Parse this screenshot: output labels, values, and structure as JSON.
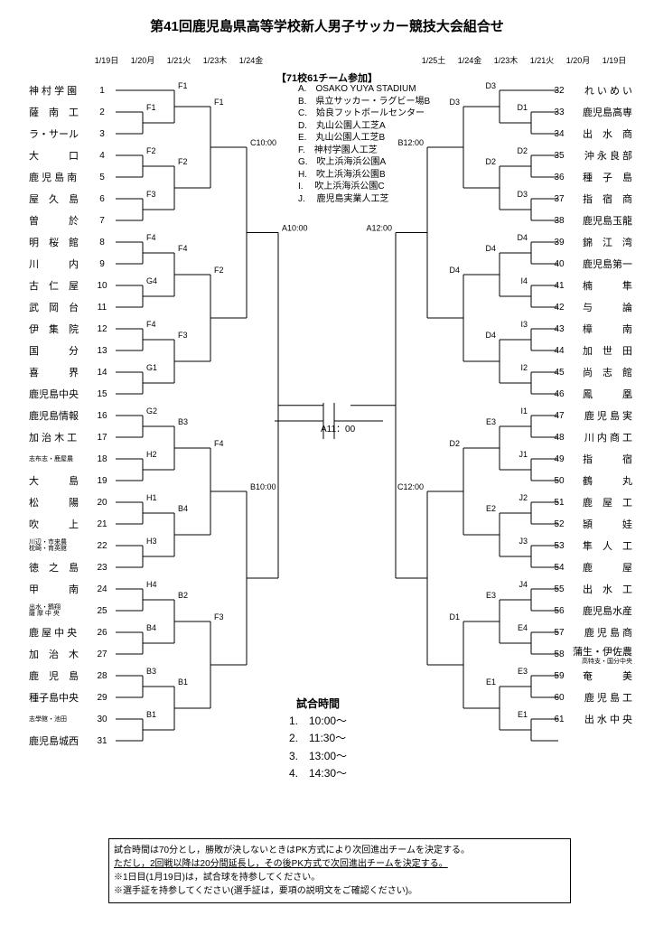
{
  "title": "第41回鹿児島県高等学校新人男子サッカー競技大会組合せ",
  "dates": [
    "1/19日",
    "1/20月",
    "1/21火",
    "1/23木",
    "1/24金",
    "1/25土",
    "1/24金",
    "1/23木",
    "1/21火",
    "1/20月",
    "1/19日"
  ],
  "header": "【71校61チーム参加】",
  "venues": [
    "A.　OSAKO YUYA STADIUM",
    "B.　県立サッカー・ラグビー場B",
    "C.　姶良フットボールセンター",
    "D.　丸山公園人工芝A",
    "E.　丸山公園人工芝B",
    "F.　神村学園人工芝",
    "G.　吹上浜海浜公園A",
    "H.　吹上浜海浜公園B",
    "I.　 吹上浜海浜公園C",
    "J.　 鹿児島実業人工芝"
  ],
  "teams_left": [
    {
      "name": "神 村 学 園",
      "no": "1"
    },
    {
      "name": "薩　南　工",
      "no": "2"
    },
    {
      "name": "ラ・サール",
      "no": "3"
    },
    {
      "name": "大　　　口",
      "no": "4"
    },
    {
      "name": "鹿 児 島 南",
      "no": "5"
    },
    {
      "name": "屋　久　島",
      "no": "6"
    },
    {
      "name": "曽　　　於",
      "no": "7"
    },
    {
      "name": "明　桜　館",
      "no": "8"
    },
    {
      "name": "川　　　内",
      "no": "9"
    },
    {
      "name": "古　仁　屋",
      "no": "10"
    },
    {
      "name": "武　岡　台",
      "no": "11"
    },
    {
      "name": "伊　集　院",
      "no": "12"
    },
    {
      "name": "国　　　分",
      "no": "13"
    },
    {
      "name": "喜　　　界",
      "no": "14"
    },
    {
      "name": "鹿児島中央",
      "no": "15"
    },
    {
      "name": "鹿児島情報",
      "no": "16"
    },
    {
      "name": "加 治 木 工",
      "no": "17"
    },
    {
      "name": "志布志・鹿屋農",
      "no": "18",
      "sub": 1
    },
    {
      "name": "大　　　島",
      "no": "19"
    },
    {
      "name": "松　　　陽",
      "no": "20"
    },
    {
      "name": "吹　　　上",
      "no": "21"
    },
    {
      "name": "川辺・市来農<br>枕崎・育英館",
      "no": "22",
      "sub": 1
    },
    {
      "name": "徳　之　島",
      "no": "23"
    },
    {
      "name": "甲　　　南",
      "no": "24"
    },
    {
      "name": "出水・鶴翔<br>薩 摩 中 央",
      "no": "25",
      "sub": 1
    },
    {
      "name": "鹿 屋 中 央",
      "no": "26"
    },
    {
      "name": "加　治　木",
      "no": "27"
    },
    {
      "name": "鹿　児　島",
      "no": "28"
    },
    {
      "name": "種子島中央",
      "no": "29"
    },
    {
      "name": "志學館・池田",
      "no": "30",
      "sub": 1
    },
    {
      "name": "鹿児島城西",
      "no": "31"
    }
  ],
  "teams_right": [
    {
      "name": "れ い め い",
      "no": "32"
    },
    {
      "name": "鹿児島高専",
      "no": "33"
    },
    {
      "name": "出　水　商",
      "no": "34"
    },
    {
      "name": "沖 永 良 部",
      "no": "35"
    },
    {
      "name": "種　子　島",
      "no": "36"
    },
    {
      "name": "指　宿　商",
      "no": "37"
    },
    {
      "name": "鹿児島玉龍",
      "no": "38"
    },
    {
      "name": "錦　江　湾",
      "no": "39"
    },
    {
      "name": "鹿児島第一",
      "no": "40"
    },
    {
      "name": "楠　　　隼",
      "no": "41"
    },
    {
      "name": "与　　　論",
      "no": "42"
    },
    {
      "name": "樟　　　南",
      "no": "43"
    },
    {
      "name": "加　世　田",
      "no": "44"
    },
    {
      "name": "尚　志　館",
      "no": "45"
    },
    {
      "name": "鳳　　　凰",
      "no": "46"
    },
    {
      "name": "鹿 児 島 実",
      "no": "47"
    },
    {
      "name": "川 内 商 工",
      "no": "48"
    },
    {
      "name": "指　　　宿",
      "no": "49"
    },
    {
      "name": "鶴　　　丸",
      "no": "50"
    },
    {
      "name": "鹿　屋　工",
      "no": "51"
    },
    {
      "name": "頴　　　娃",
      "no": "52"
    },
    {
      "name": "隼　人　工",
      "no": "53"
    },
    {
      "name": "鹿　　　屋",
      "no": "54"
    },
    {
      "name": "出　水　工",
      "no": "55"
    },
    {
      "name": "鹿児島水産",
      "no": "56"
    },
    {
      "name": "鹿 児 島 商",
      "no": "57"
    },
    {
      "name": "蒲生・伊佐農",
      "no": "58",
      "sub2": "高特支・国分中央"
    },
    {
      "name": "奄　　　美",
      "no": "59"
    },
    {
      "name": "鹿 児 島 工",
      "no": "60"
    },
    {
      "name": "出 水 中 央",
      "no": "61"
    }
  ],
  "match_labels_left": {
    "r1": [
      "F1",
      "F2",
      "F3",
      "F4",
      "G4",
      "F4",
      "G1",
      "G2",
      "H2",
      "H1",
      "H3",
      "H4",
      "B4",
      "B3",
      "B1"
    ],
    "r2": [
      "F1",
      "F2",
      "F4",
      "F3",
      "B3",
      "B4",
      "B2",
      "B1"
    ],
    "r3": [
      "F1",
      "F2",
      "F4",
      "F3"
    ],
    "r4": [
      "C10:00",
      "B10:00"
    ],
    "r5": [
      "A10:00"
    ]
  },
  "match_labels_right": {
    "r1": [
      "D1",
      "D2",
      "D3",
      "D4",
      "I4",
      "I3",
      "I2",
      "I1",
      "J1",
      "J2",
      "J3",
      "J4",
      "E4",
      "E3",
      "E1"
    ],
    "r2": [
      "D3",
      "D2",
      "D4",
      "D4",
      "E3",
      "E2",
      "E3",
      "E1"
    ],
    "r3": [
      "D3",
      "D4",
      "D2",
      "D1"
    ],
    "r4": [
      "B12:00",
      "C12:00"
    ],
    "r5": [
      "A12:00"
    ]
  },
  "final": "A11：00",
  "times_title": "試合時間",
  "times": [
    "1.　10:00～",
    "2.　11:30～",
    "3.　13:00～",
    "4.　14:30～"
  ],
  "notes": [
    "試合時間は70分とし，勝敗が決しないときはPK方式により次回進出チームを決定する。",
    "ただし，2回戦以降は20分間延長し，その後PK方式で次回進出チームを決定する。",
    "※1日目(1月19日)は，試合球を持参してください。",
    "※選手証を持参してください(選手証は，要項の説明文をご確認ください)。"
  ]
}
